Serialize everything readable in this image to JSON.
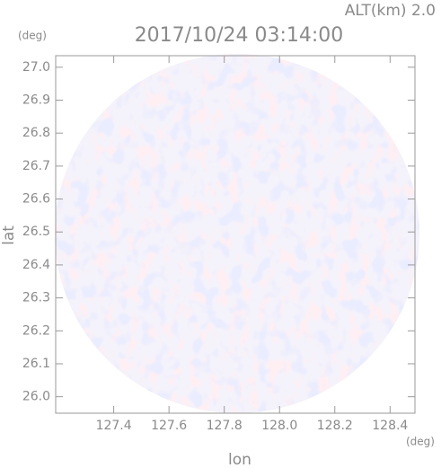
{
  "chart_data": {
    "type": "radar-image",
    "title": "2017/10/24 03:14:00",
    "subtitle": "ALT(km) 2.0",
    "x_label": "lon",
    "y_label": "lat",
    "x_unit": "(deg)",
    "y_unit": "(deg)",
    "xlim": [
      127.19,
      128.49
    ],
    "ylim": [
      25.95,
      27.035
    ],
    "xticks": [
      127.4,
      127.6,
      127.8,
      {
        "value": 128.0,
        "label": "128.0"
      },
      128.2,
      128.4
    ],
    "yticks": [
      {
        "value": 26.0,
        "label": "26.0"
      },
      26.1,
      26.2,
      26.3,
      26.4,
      26.5,
      26.6,
      26.7,
      26.8,
      26.9,
      {
        "value": 27.0,
        "label": "27.0"
      }
    ]
  }
}
